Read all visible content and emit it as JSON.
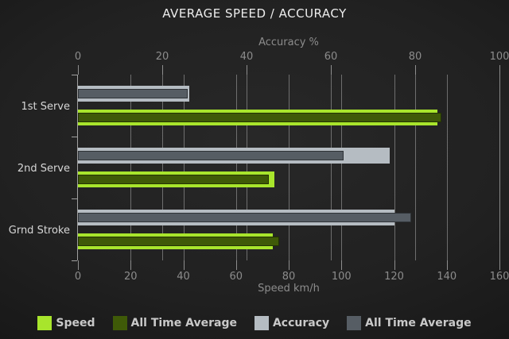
{
  "chart_data": {
    "type": "bar",
    "orientation": "horizontal",
    "title": "AVERAGE SPEED / ACCURACY",
    "categories": [
      "1st Serve",
      "2nd Serve",
      "Grnd Stroke"
    ],
    "top_axis": {
      "label": "Accuracy %",
      "max": 100,
      "ticks": [
        0,
        20,
        40,
        60,
        80,
        100
      ]
    },
    "bottom_axis": {
      "label": "Speed km/h",
      "max": 160,
      "ticks": [
        0,
        20,
        40,
        60,
        80,
        100,
        120,
        140,
        160
      ]
    },
    "grid": true,
    "legend_position": "bottom",
    "series": [
      {
        "name": "Speed",
        "axis": "bottom",
        "role": "outer",
        "color": "#a8e52c",
        "values": [
          136.5,
          74.5,
          74.0
        ]
      },
      {
        "name": "All Time Average",
        "axis": "bottom",
        "role": "overlay",
        "color": "#3f5a08",
        "values": [
          138.0,
          72.5,
          76.5
        ]
      },
      {
        "name": "Accuracy",
        "axis": "top",
        "role": "outer",
        "color": "#b5bcc2",
        "values": [
          26.5,
          74.0,
          75.0
        ]
      },
      {
        "name": "All Time Average",
        "axis": "top",
        "role": "overlay",
        "color": "#565d64",
        "values": [
          26.0,
          63.0,
          79.0
        ]
      }
    ],
    "legend": [
      {
        "label": "Speed",
        "color": "#a8e52c"
      },
      {
        "label": "All Time Average",
        "color": "#3f5a08"
      },
      {
        "label": "Accuracy",
        "color": "#b5bcc2"
      },
      {
        "label": "All Time Average",
        "color": "#565d64"
      }
    ],
    "colors": {
      "background": "#212121",
      "gridline": "#969696",
      "axis_text": "#8c8c8c",
      "category_text": "#d6d6d6",
      "title_text": "#ededed"
    }
  }
}
